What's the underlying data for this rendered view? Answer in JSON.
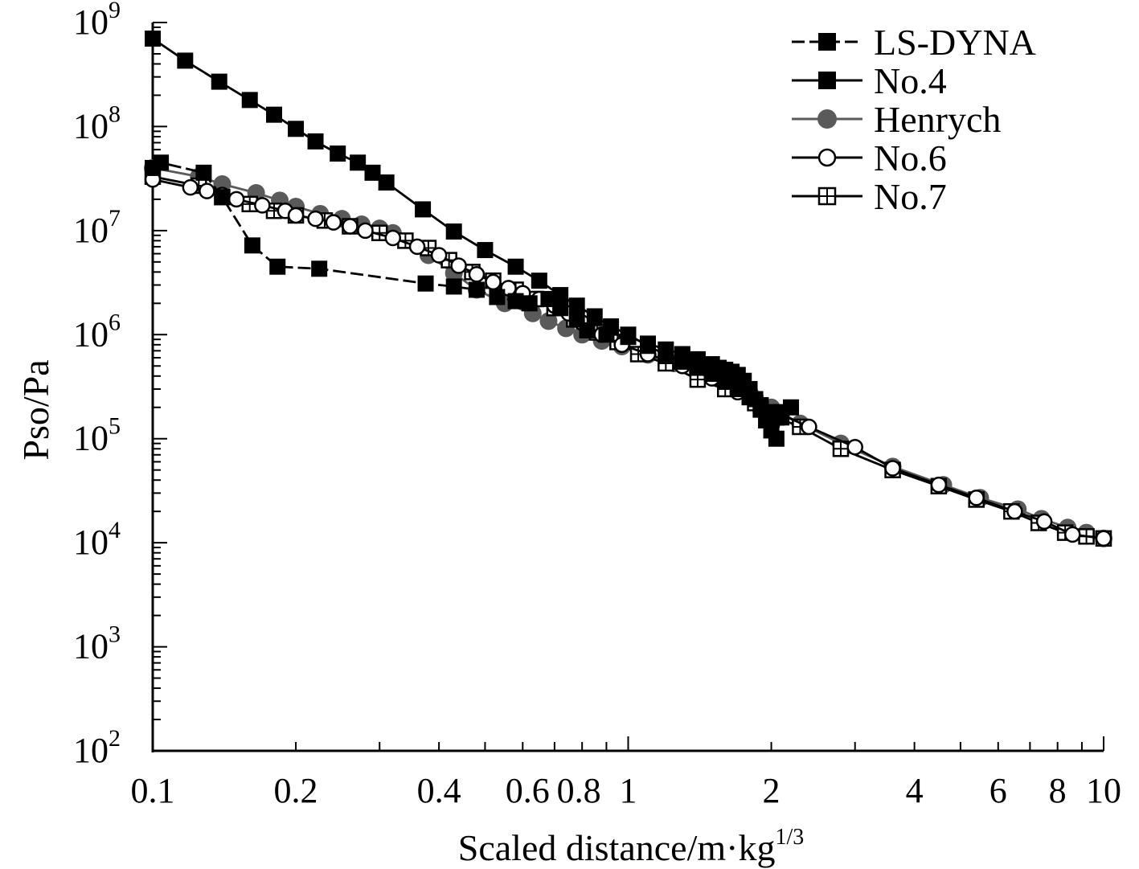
{
  "chart_data": {
    "type": "line",
    "xscale": "log",
    "yscale": "log",
    "xlim": [
      0.1,
      10
    ],
    "ylim": [
      100,
      1000000000
    ],
    "xlabel": "Scaled distance/m·kg",
    "xlabel_sup": "1/3",
    "ylabel": "Pso/Pa",
    "grid": false,
    "legend_position": "top-right",
    "x_ticks": [
      {
        "value": 0.1,
        "label": "0.1"
      },
      {
        "value": 0.2,
        "label": "0.2"
      },
      {
        "value": 0.4,
        "label": "0.4"
      },
      {
        "value": 0.6,
        "label": "0.6"
      },
      {
        "value": 0.8,
        "label": "0.8"
      },
      {
        "value": 1,
        "label": "1"
      },
      {
        "value": 2,
        "label": "2"
      },
      {
        "value": 4,
        "label": "4"
      },
      {
        "value": 6,
        "label": "6"
      },
      {
        "value": 8,
        "label": "8"
      },
      {
        "value": 10,
        "label": "10"
      }
    ],
    "y_ticks": [
      {
        "value": 1000000000,
        "base": "10",
        "exp": "9"
      },
      {
        "value": 100000000,
        "base": "10",
        "exp": "8"
      },
      {
        "value": 10000000,
        "base": "10",
        "exp": "7"
      },
      {
        "value": 1000000,
        "base": "10",
        "exp": "6"
      },
      {
        "value": 100000,
        "base": "10",
        "exp": "5"
      },
      {
        "value": 10000,
        "base": "10",
        "exp": "4"
      },
      {
        "value": 1000,
        "base": "10",
        "exp": "3"
      },
      {
        "value": 100,
        "base": "10",
        "exp": "2"
      }
    ],
    "series": [
      {
        "name": "LS-DYNA",
        "color": "#000000",
        "marker": "square-filled",
        "dashed": true,
        "points": [
          [
            0.1,
            40000000
          ],
          [
            0.104,
            45000000
          ],
          [
            0.128,
            36000000
          ],
          [
            0.14,
            21000000
          ],
          [
            0.162,
            7200000
          ],
          [
            0.183,
            4500000
          ],
          [
            0.224,
            4300000
          ],
          [
            0.375,
            3100000
          ],
          [
            0.43,
            2900000
          ],
          [
            0.48,
            2700000
          ],
          [
            0.53,
            2300000
          ],
          [
            0.58,
            2100000
          ],
          [
            0.62,
            2000000
          ],
          [
            0.68,
            2200000
          ],
          [
            0.72,
            1800000
          ],
          [
            0.78,
            1400000
          ],
          [
            0.82,
            1100000
          ],
          [
            0.9,
            1000000
          ],
          [
            1.0,
            950000
          ],
          [
            1.1,
            820000
          ],
          [
            1.2,
            720000
          ],
          [
            1.3,
            650000
          ],
          [
            1.4,
            580000
          ],
          [
            1.5,
            520000
          ],
          [
            1.55,
            480000
          ],
          [
            1.6,
            460000
          ],
          [
            1.65,
            440000
          ],
          [
            1.7,
            410000
          ],
          [
            1.75,
            360000
          ],
          [
            1.8,
            300000
          ],
          [
            1.85,
            240000
          ],
          [
            1.9,
            190000
          ],
          [
            1.95,
            150000
          ],
          [
            2.0,
            120000
          ],
          [
            2.05,
            100000
          ],
          [
            2.1,
            180000
          ],
          [
            2.2,
            200000
          ]
        ]
      },
      {
        "name": "No.4",
        "color": "#000000",
        "marker": "square-filled",
        "dashed": false,
        "points": [
          [
            0.1,
            700000000
          ],
          [
            0.117,
            430000000
          ],
          [
            0.138,
            270000000
          ],
          [
            0.16,
            180000000
          ],
          [
            0.18,
            130000000
          ],
          [
            0.2,
            95000000
          ],
          [
            0.22,
            72000000
          ],
          [
            0.245,
            55000000
          ],
          [
            0.27,
            45000000
          ],
          [
            0.29,
            36000000
          ],
          [
            0.31,
            29000000
          ],
          [
            0.37,
            16000000
          ],
          [
            0.43,
            9800000
          ],
          [
            0.5,
            6500000
          ],
          [
            0.58,
            4500000
          ],
          [
            0.65,
            3300000
          ],
          [
            0.72,
            2400000
          ],
          [
            0.78,
            1900000
          ],
          [
            0.85,
            1500000
          ],
          [
            0.92,
            1200000
          ],
          [
            1.0,
            1000000
          ],
          [
            1.1,
            780000
          ],
          [
            1.2,
            640000
          ],
          [
            1.3,
            550000
          ],
          [
            1.4,
            480000
          ],
          [
            1.5,
            420000
          ],
          [
            1.6,
            360000
          ],
          [
            1.7,
            300000
          ],
          [
            1.8,
            250000
          ],
          [
            1.9,
            210000
          ],
          [
            2.0,
            180000
          ],
          [
            2.1,
            160000
          ]
        ]
      },
      {
        "name": "Henrych",
        "color": "#5a5a5a",
        "marker": "circle-filled",
        "dashed": false,
        "points": [
          [
            0.1,
            40000000
          ],
          [
            0.125,
            33000000
          ],
          [
            0.14,
            28000000
          ],
          [
            0.165,
            23000000
          ],
          [
            0.185,
            19500000
          ],
          [
            0.2,
            17000000
          ],
          [
            0.225,
            14500000
          ],
          [
            0.25,
            13000000
          ],
          [
            0.275,
            11500000
          ],
          [
            0.3,
            10500000
          ],
          [
            0.32,
            9500000
          ],
          [
            0.38,
            5800000
          ],
          [
            0.43,
            3900000
          ],
          [
            0.48,
            2700000
          ],
          [
            0.55,
            2000000
          ],
          [
            0.63,
            1600000
          ],
          [
            0.68,
            1350000
          ],
          [
            0.74,
            1150000
          ],
          [
            0.8,
            1000000
          ],
          [
            0.88,
            870000
          ],
          [
            0.97,
            770000
          ],
          [
            1.1,
            640000
          ],
          [
            1.25,
            530000
          ],
          [
            1.4,
            440000
          ],
          [
            1.6,
            360000
          ],
          [
            1.8,
            280000
          ],
          [
            2.0,
            200000
          ],
          [
            2.3,
            140000
          ],
          [
            2.8,
            90000
          ],
          [
            3.6,
            54000
          ],
          [
            4.6,
            36000
          ],
          [
            5.5,
            27000
          ],
          [
            6.6,
            21000
          ],
          [
            7.4,
            17000
          ],
          [
            8.4,
            14000
          ],
          [
            9.2,
            12500
          ],
          [
            10,
            11000
          ]
        ]
      },
      {
        "name": "No.6",
        "color": "#000000",
        "marker": "circle-open",
        "dashed": false,
        "points": [
          [
            0.1,
            31000000
          ],
          [
            0.12,
            26000000
          ],
          [
            0.13,
            24000000
          ],
          [
            0.14,
            22000000
          ],
          [
            0.15,
            20000000
          ],
          [
            0.17,
            17500000
          ],
          [
            0.19,
            15500000
          ],
          [
            0.2,
            14000000
          ],
          [
            0.22,
            13000000
          ],
          [
            0.24,
            12000000
          ],
          [
            0.26,
            11000000
          ],
          [
            0.28,
            10000000
          ],
          [
            0.32,
            8500000
          ],
          [
            0.36,
            7000000
          ],
          [
            0.4,
            5800000
          ],
          [
            0.44,
            4600000
          ],
          [
            0.48,
            3800000
          ],
          [
            0.52,
            3200000
          ],
          [
            0.56,
            2800000
          ],
          [
            0.6,
            2500000
          ],
          [
            0.65,
            2200000
          ],
          [
            0.7,
            1900000
          ],
          [
            0.75,
            1600000
          ],
          [
            0.8,
            1300000
          ],
          [
            0.88,
            1000000
          ],
          [
            0.97,
            800000
          ],
          [
            1.1,
            650000
          ],
          [
            1.3,
            500000
          ],
          [
            1.5,
            380000
          ],
          [
            1.7,
            280000
          ],
          [
            1.9,
            210000
          ],
          [
            2.1,
            170000
          ],
          [
            2.4,
            130000
          ],
          [
            3.0,
            83000
          ],
          [
            3.6,
            52000
          ],
          [
            4.5,
            36000
          ],
          [
            5.4,
            27000
          ],
          [
            6.5,
            20000
          ],
          [
            7.5,
            16000
          ],
          [
            8.6,
            12000
          ],
          [
            10,
            11000
          ]
        ]
      },
      {
        "name": "No.7",
        "color": "#000000",
        "marker": "square-cross",
        "dashed": false,
        "points": [
          [
            0.1,
            33000000
          ],
          [
            0.125,
            27000000
          ],
          [
            0.14,
            21000000
          ],
          [
            0.16,
            18000000
          ],
          [
            0.18,
            15500000
          ],
          [
            0.2,
            14000000
          ],
          [
            0.23,
            12500000
          ],
          [
            0.26,
            11000000
          ],
          [
            0.3,
            9500000
          ],
          [
            0.34,
            8000000
          ],
          [
            0.38,
            6800000
          ],
          [
            0.42,
            5200000
          ],
          [
            0.47,
            4000000
          ],
          [
            0.52,
            3300000
          ],
          [
            0.58,
            2700000
          ],
          [
            0.64,
            2200000
          ],
          [
            0.7,
            1800000
          ],
          [
            0.77,
            1400000
          ],
          [
            0.86,
            1050000
          ],
          [
            0.95,
            850000
          ],
          [
            1.05,
            650000
          ],
          [
            1.2,
            530000
          ],
          [
            1.4,
            370000
          ],
          [
            1.6,
            300000
          ],
          [
            1.85,
            220000
          ],
          [
            2.05,
            160000
          ],
          [
            2.3,
            130000
          ],
          [
            2.8,
            80000
          ],
          [
            3.6,
            50000
          ],
          [
            4.5,
            35000
          ],
          [
            5.4,
            26000
          ],
          [
            6.4,
            20000
          ],
          [
            7.3,
            15500
          ],
          [
            8.3,
            12500
          ],
          [
            9.2,
            11500
          ],
          [
            10,
            11000
          ]
        ]
      }
    ]
  }
}
